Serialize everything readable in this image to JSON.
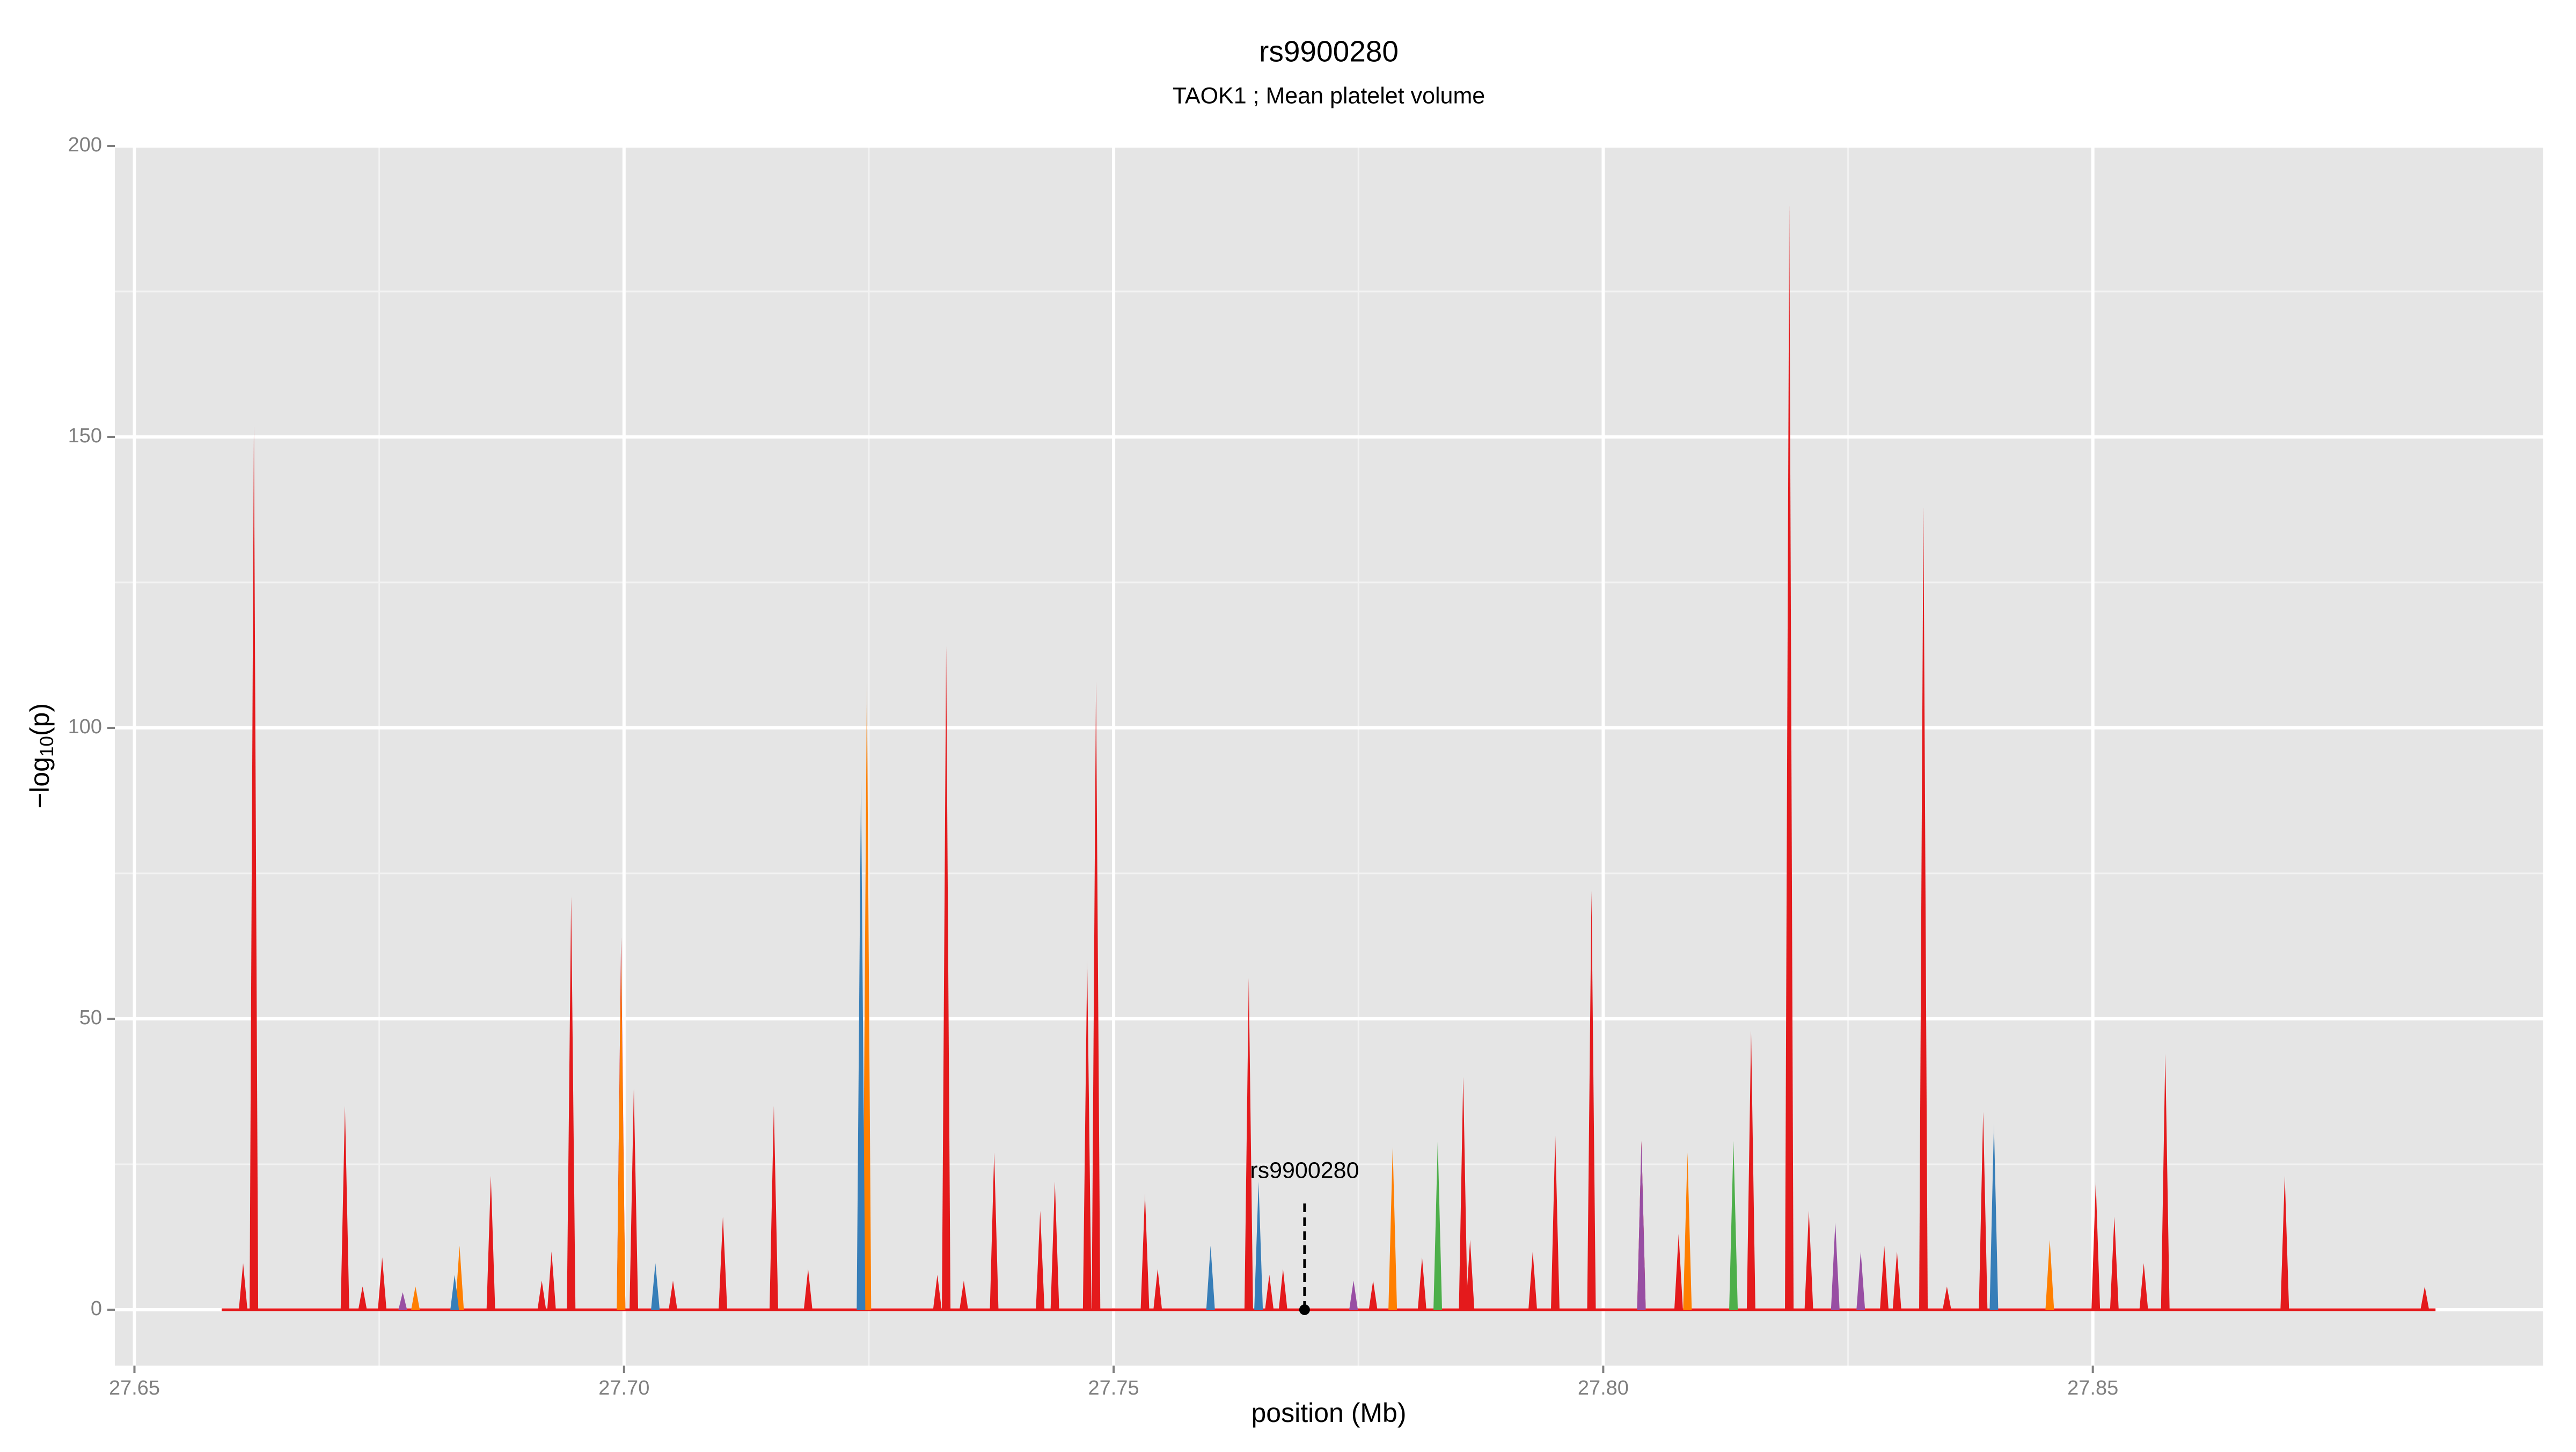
{
  "chart_data": {
    "type": "area",
    "title": "rs9900280",
    "subtitle": "TAOK1 ; Mean platelet volume",
    "x_label": "position (Mb)",
    "y_label": {
      "base": "−log",
      "sub": "10",
      "tail": "(p)"
    },
    "xlim": [
      27.648,
      27.896
    ],
    "ylim": [
      -9.6,
      200
    ],
    "xticks": [
      27.65,
      {
        "value": 27.7,
        "label": "27.70"
      },
      27.75,
      {
        "value": 27.8,
        "label": "27.80"
      },
      27.85
    ],
    "yticks": [
      0,
      50,
      100,
      150,
      200
    ],
    "grid": true,
    "series": [
      {
        "color": "#e41a1c",
        "x": [
          27.6611,
          27.6622,
          27.6715,
          27.6733,
          27.6753,
          27.6864,
          27.6916,
          27.6926,
          27.6946,
          27.6997,
          27.701,
          27.705,
          27.7101,
          27.7153,
          27.7188,
          27.7248,
          27.732,
          27.7329,
          27.7347,
          27.7378,
          27.7425,
          27.744,
          27.7473,
          27.7482,
          27.7532,
          27.7545,
          27.7638,
          27.7659,
          27.7673,
          27.7765,
          27.7815,
          27.7857,
          27.7864,
          27.7928,
          27.7951,
          27.7988,
          27.8039,
          27.8077,
          27.8151,
          27.819,
          27.821,
          27.8287,
          27.83,
          27.8327,
          27.8351,
          27.8388,
          27.8503,
          27.8522,
          27.8552,
          27.8574,
          27.8696,
          27.8839
        ],
        "values": [
          8,
          152,
          35,
          4,
          9,
          23,
          5,
          10,
          71,
          64,
          38,
          5,
          16,
          35,
          7,
          6,
          6,
          114,
          5,
          27,
          17,
          22,
          60,
          108,
          20,
          7,
          57,
          6,
          7,
          5,
          9,
          40,
          12,
          10,
          30,
          72,
          29,
          13,
          48,
          190,
          17,
          11,
          10,
          138,
          4,
          34,
          22,
          16,
          8,
          44,
          23,
          4
        ]
      },
      {
        "color": "#ff7f00",
        "x": [
          27.6787,
          27.6832,
          27.6997,
          27.7248,
          27.7785,
          27.8086,
          27.8456
        ],
        "values": [
          4,
          11,
          60,
          108,
          28,
          27,
          12
        ]
      },
      {
        "color": "#377eb8",
        "x": [
          27.6827,
          27.7032,
          27.7242,
          27.7599,
          27.7648,
          27.8399
        ],
        "values": [
          6,
          8,
          91,
          11,
          22,
          32
        ]
      },
      {
        "color": "#4daf4a",
        "x": [
          27.7831,
          27.8133
        ],
        "values": [
          29,
          29
        ]
      },
      {
        "color": "#984ea3",
        "x": [
          27.6774,
          27.7745,
          27.8039,
          27.8237,
          27.8263
        ],
        "values": [
          3,
          5,
          29,
          15,
          10
        ]
      }
    ],
    "annotation": {
      "text": "rs9900280",
      "x": 27.7695,
      "y": 0
    }
  }
}
